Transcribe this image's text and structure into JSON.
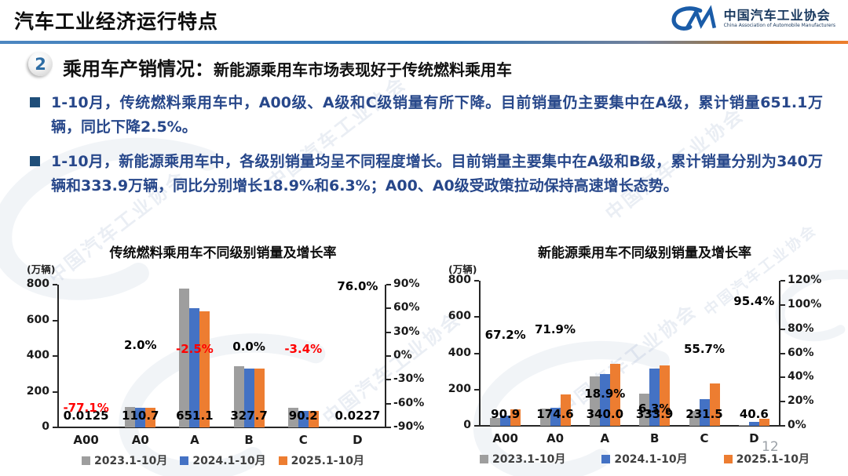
{
  "header": {
    "title": "汽车工业经济运行特点",
    "logo": {
      "name_cn": "中国汽车工业协会",
      "name_en": "China Association of Automobile Manufacturers"
    }
  },
  "section": {
    "number": "2",
    "heading": "乘用车产销情况：",
    "subheading": "新能源乘用车市场表现好于传统燃料乘用车"
  },
  "bullets": [
    {
      "text": "1-10月，传统燃料乘用车中，A00级、A级和C级销量有所下降。目前销量仍主要集中在A级，累计销量651.1万辆，同比下降2.5%。"
    },
    {
      "text": "1-10月，新能源乘用车中，各级别销量均呈不同程度增长。目前销量主要集中在A级和B级，累计销量分别为340万辆和333.9万辆，同比分别增长18.9%和6.3%；A00、A0级受政策拉动保持高速增长态势。"
    }
  ],
  "watermark": {
    "text": "中国汽车工业协会"
  },
  "page_number": "12",
  "colors": {
    "series_gray": "#9E9E9E",
    "series_blue": "#4472C4",
    "series_orange": "#ED7D31",
    "negative_label": "#FF0000",
    "accent_blue": "#2E74B5",
    "accent_orange": "#EE7F2D"
  },
  "chart_data": [
    {
      "type": "bar",
      "title": "传统燃料乘用车不同级别销量及增长率",
      "unit_label": "(万辆)",
      "categories": [
        "A00",
        "A0",
        "A",
        "B",
        "C",
        "D"
      ],
      "series": [
        {
          "name": "2023.1-10月",
          "color": "#9E9E9E",
          "values": [
            0.05,
            113,
            779,
            343,
            110,
            0.01
          ]
        },
        {
          "name": "2024.1-10月",
          "color": "#4472C4",
          "values": [
            0.055,
            108.5,
            667.8,
            327.7,
            93.4,
            0.013
          ]
        },
        {
          "name": "2025.1-10月",
          "color": "#ED7D31",
          "values": [
            0.0125,
            110.7,
            651.1,
            327.7,
            90.2,
            0.0227
          ]
        }
      ],
      "value_labels": [
        "0.0125",
        "110.7",
        "651.1",
        "327.7",
        "90.2",
        "0.0227"
      ],
      "growth_labels": [
        {
          "text": "-77.1%",
          "value": -77.1,
          "color": "#FF0000"
        },
        {
          "text": "2.0%",
          "value": 2.0,
          "color": "#000000"
        },
        {
          "text": "-2.5%",
          "value": -2.5,
          "color": "#FF0000"
        },
        {
          "text": "0.0%",
          "value": 0.0,
          "color": "#000000"
        },
        {
          "text": "-3.4%",
          "value": -3.4,
          "color": "#FF0000"
        },
        {
          "text": "76.0%",
          "value": 76.0,
          "color": "#000000"
        }
      ],
      "y_left": {
        "min": 0,
        "max": 800,
        "ticks": [
          "0",
          "200",
          "400",
          "600",
          "800"
        ]
      },
      "y_right": {
        "min": -90,
        "max": 90,
        "ticks": [
          "-90%",
          "-60%",
          "-30%",
          "0%",
          "30%",
          "60%",
          "90%"
        ]
      },
      "grid": false,
      "legend_position": "bottom"
    },
    {
      "type": "bar",
      "title": "新能源乘用车不同级别销量及增长率",
      "unit_label": "(万辆)",
      "categories": [
        "A00",
        "A0",
        "A",
        "B",
        "C",
        "D"
      ],
      "series": [
        {
          "name": "2023.1-10月",
          "color": "#9E9E9E",
          "values": [
            42,
            93,
            272,
            177,
            84,
            6
          ]
        },
        {
          "name": "2024.1-10月",
          "color": "#4472C4",
          "values": [
            54.4,
            101.6,
            286.0,
            314.1,
            148.7,
            20.8
          ]
        },
        {
          "name": "2025.1-10月",
          "color": "#ED7D31",
          "values": [
            90.9,
            174.6,
            340.0,
            333.9,
            231.5,
            40.6
          ]
        }
      ],
      "value_labels": [
        "90.9",
        "174.6",
        "340.0",
        "333.9",
        "231.5",
        "40.6"
      ],
      "growth_labels": [
        {
          "text": "67.2%",
          "value": 67.2,
          "color": "#000000"
        },
        {
          "text": "71.9%",
          "value": 71.9,
          "color": "#000000"
        },
        {
          "text": "18.9%",
          "value": 18.9,
          "color": "#000000"
        },
        {
          "text": "6.3%",
          "value": 6.3,
          "color": "#000000"
        },
        {
          "text": "55.7%",
          "value": 55.7,
          "color": "#000000"
        },
        {
          "text": "95.4%",
          "value": 95.4,
          "color": "#000000"
        }
      ],
      "y_left": {
        "min": 0,
        "max": 800,
        "ticks": [
          "0",
          "200",
          "400",
          "600",
          "800"
        ]
      },
      "y_right": {
        "min": 0,
        "max": 120,
        "ticks": [
          "0%",
          "20%",
          "40%",
          "60%",
          "80%",
          "100%",
          "120%"
        ]
      },
      "grid": false,
      "legend_position": "bottom"
    }
  ]
}
